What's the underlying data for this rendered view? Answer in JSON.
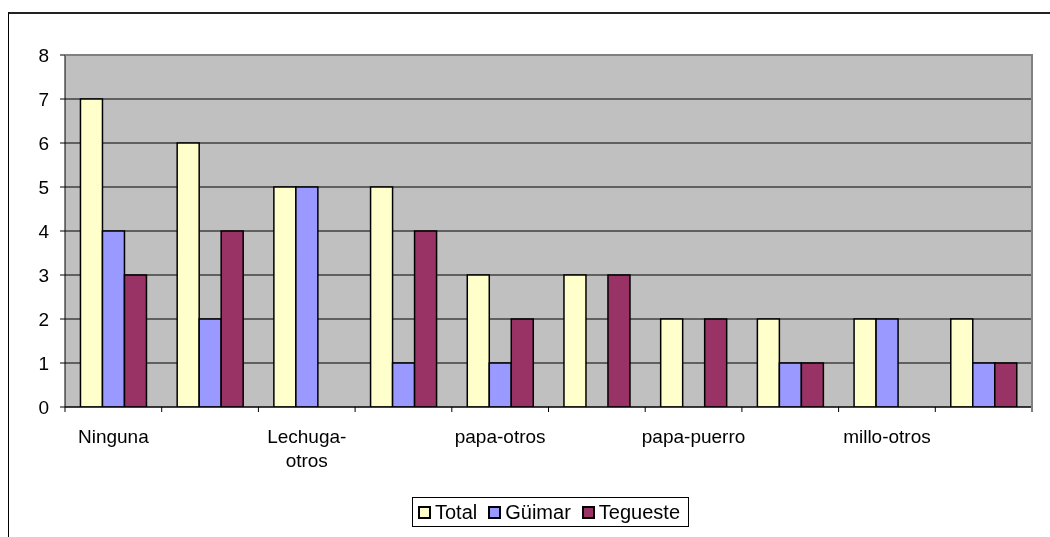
{
  "chart_data": {
    "type": "bar",
    "categories": [
      "Ninguna",
      null,
      "Lechuga-otros",
      null,
      "papa-otros",
      null,
      "papa-puerro",
      null,
      "millo-otros",
      null
    ],
    "series": [
      {
        "name": "Total",
        "color": "#ffffcc",
        "values": [
          7,
          6,
          5,
          5,
          3,
          3,
          2,
          2,
          2,
          2
        ]
      },
      {
        "name": "Güimar",
        "color": "#9999ff",
        "values": [
          4,
          2,
          5,
          1,
          1,
          0,
          0,
          1,
          2,
          1
        ]
      },
      {
        "name": "Tegueste",
        "color": "#993366",
        "values": [
          3,
          4,
          0,
          4,
          2,
          3,
          2,
          1,
          0,
          1
        ]
      }
    ],
    "ylim": [
      0,
      8
    ],
    "yticks": [
      0,
      1,
      2,
      3,
      4,
      5,
      6,
      7,
      8
    ],
    "grid": "y",
    "legend": "bottom"
  }
}
